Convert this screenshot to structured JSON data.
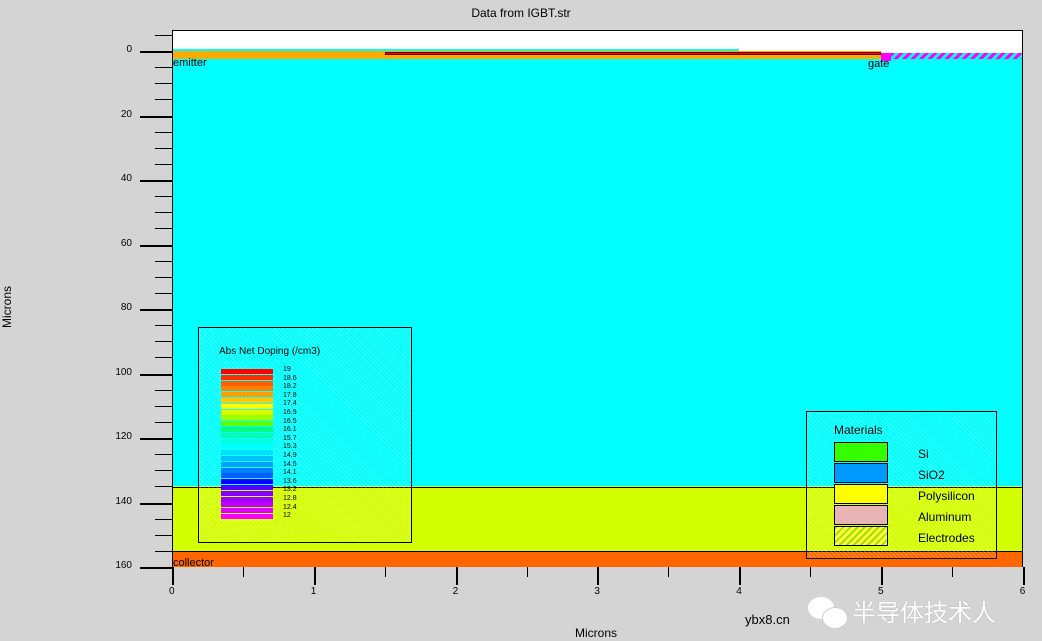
{
  "chart_data": {
    "type": "heatmap",
    "title": "Data from IGBT.str",
    "xlabel": "Microns",
    "ylabel": "Microns",
    "xlim": [
      0,
      6
    ],
    "ylim": [
      160,
      -6.5
    ],
    "xticks": [
      "0",
      "1",
      "2",
      "3",
      "4",
      "5",
      "6"
    ],
    "yticks": [
      "0",
      "20",
      "40",
      "60",
      "80",
      "100",
      "120",
      "140",
      "160"
    ],
    "regions": [
      {
        "name": "drift",
        "color": "#00ffff",
        "x": [
          0,
          6
        ],
        "y": [
          2.5,
          135
        ]
      },
      {
        "name": "buffer",
        "color": "#d4ff00",
        "x": [
          0,
          6
        ],
        "y": [
          135,
          155
        ]
      },
      {
        "name": "collector-region",
        "color": "#ff6600",
        "x": [
          0,
          6
        ],
        "y": [
          155,
          160
        ]
      },
      {
        "name": "emitter-layer",
        "color": "#ffaa00",
        "x": [
          0,
          5
        ],
        "y": [
          0,
          2.5
        ]
      },
      {
        "name": "top-cyan",
        "color": "#00ffff",
        "x": [
          0,
          4
        ],
        "y": [
          -0.7,
          0
        ]
      },
      {
        "name": "red-strip",
        "color": "#ff0000",
        "x": [
          1.5,
          5
        ],
        "y": [
          0.2,
          1.2
        ]
      },
      {
        "name": "gate-block",
        "color": "#ff00ff",
        "x": [
          5,
          5.07
        ],
        "y": [
          0.5,
          3
        ]
      },
      {
        "name": "gate-hatch",
        "color": "#ff00ff",
        "x": [
          5.07,
          6
        ],
        "y": [
          0.5,
          2.5
        ]
      }
    ],
    "electrode_labels": [
      "emitter",
      "gate",
      "collector"
    ],
    "doping_legend": {
      "title": "Abs Net Doping (/cm3)",
      "labels": [
        "19",
        "18.6",
        "18.2",
        "17.8",
        "17.4",
        "16.9",
        "16.5",
        "16.1",
        "15.7",
        "15.3",
        "14.9",
        "14.5",
        "14.1",
        "13.6",
        "13.2",
        "12.8",
        "12.4",
        "12"
      ],
      "colors": [
        "#ff0000",
        "#ff3000",
        "#ff6000",
        "#ff8000",
        "#ffa000",
        "#ffc800",
        "#ffff00",
        "#d8ff00",
        "#a0ff00",
        "#60ff00",
        "#00ff80",
        "#00ffb0",
        "#00ffe0",
        "#00ffff",
        "#00e0ff",
        "#00c0ff",
        "#00a0ff",
        "#0080ff",
        "#0060ff",
        "#0000ff",
        "#5000ff",
        "#8000ff",
        "#a000ff",
        "#c000ff",
        "#e000ff",
        "#ff00ff"
      ]
    },
    "materials_legend": {
      "title": "Materials",
      "items": [
        {
          "name": "Si",
          "color": "#33ff00"
        },
        {
          "name": "SiO2",
          "color": "#0099ff"
        },
        {
          "name": "Polysilicon",
          "color": "#ffff00"
        },
        {
          "name": "Aluminum",
          "color": "#e8b4b4"
        },
        {
          "name": "Electrodes",
          "color": "hatch"
        }
      ]
    }
  },
  "watermark": {
    "text": "半导体技术人",
    "url": "ybx8.cn"
  }
}
